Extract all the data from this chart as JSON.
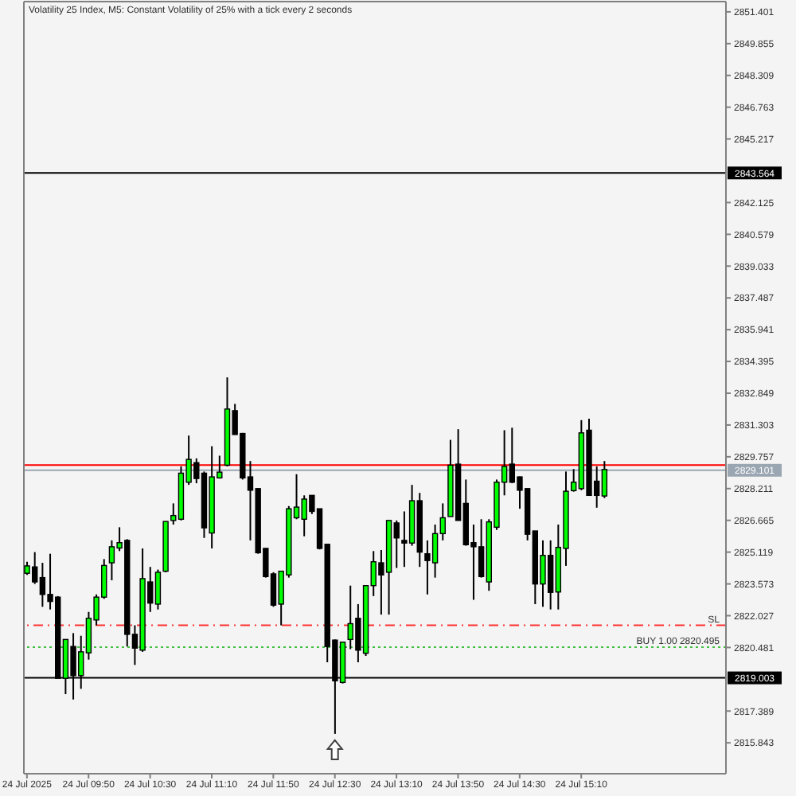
{
  "chart_data": {
    "type": "candlestick",
    "title": "Volatility 25 Index, M5: Constant Volatility of 25% with a tick every 2 seconds",
    "x": [
      "2025-07-24T09:10",
      "2025-07-24T09:15",
      "2025-07-24T09:20",
      "2025-07-24T09:25",
      "2025-07-24T09:30",
      "2025-07-24T09:35",
      "2025-07-24T09:40",
      "2025-07-24T09:45",
      "2025-07-24T09:50",
      "2025-07-24T09:55",
      "2025-07-24T10:00",
      "2025-07-24T10:05",
      "2025-07-24T10:10",
      "2025-07-24T10:15",
      "2025-07-24T10:20",
      "2025-07-24T10:25",
      "2025-07-24T10:30",
      "2025-07-24T10:35",
      "2025-07-24T10:40",
      "2025-07-24T10:45",
      "2025-07-24T10:50",
      "2025-07-24T10:55",
      "2025-07-24T11:00",
      "2025-07-24T11:05",
      "2025-07-24T11:10",
      "2025-07-24T11:15",
      "2025-07-24T11:20",
      "2025-07-24T11:25",
      "2025-07-24T11:30",
      "2025-07-24T11:35",
      "2025-07-24T11:40",
      "2025-07-24T11:45",
      "2025-07-24T11:50",
      "2025-07-24T11:55",
      "2025-07-24T12:00",
      "2025-07-24T12:05",
      "2025-07-24T12:10",
      "2025-07-24T12:15",
      "2025-07-24T12:20",
      "2025-07-24T12:25",
      "2025-07-24T12:30",
      "2025-07-24T12:35",
      "2025-07-24T12:40",
      "2025-07-24T12:45",
      "2025-07-24T12:50",
      "2025-07-24T12:55",
      "2025-07-24T13:00",
      "2025-07-24T13:05",
      "2025-07-24T13:10",
      "2025-07-24T13:15",
      "2025-07-24T13:20",
      "2025-07-24T13:25",
      "2025-07-24T13:30",
      "2025-07-24T13:35",
      "2025-07-24T13:40",
      "2025-07-24T13:45",
      "2025-07-24T13:50",
      "2025-07-24T13:55",
      "2025-07-24T14:00",
      "2025-07-24T14:05",
      "2025-07-24T14:10",
      "2025-07-24T14:15",
      "2025-07-24T14:20",
      "2025-07-24T14:25",
      "2025-07-24T14:30",
      "2025-07-24T14:35",
      "2025-07-24T14:40",
      "2025-07-24T14:45",
      "2025-07-24T14:50",
      "2025-07-24T14:55",
      "2025-07-24T15:00",
      "2025-07-24T15:05",
      "2025-07-24T15:10",
      "2025-07-24T15:15",
      "2025-07-24T15:20",
      "2025-07-24T15:25"
    ],
    "ohlc": [
      [
        2824.09,
        2824.65,
        2824.01,
        2824.45
      ],
      [
        2824.4,
        2825.12,
        2823.57,
        2823.67
      ],
      [
        2823.88,
        2824.6,
        2822.46,
        2823.06
      ],
      [
        2823.06,
        2825.04,
        2822.33,
        2822.72
      ],
      [
        2822.93,
        2822.98,
        2818.98,
        2818.98
      ],
      [
        2818.98,
        2820.87,
        2818.21,
        2820.87
      ],
      [
        2820.53,
        2821.18,
        2817.95,
        2819.11
      ],
      [
        2819.11,
        2821.05,
        2818.47,
        2820.27
      ],
      [
        2820.22,
        2822.21,
        2819.89,
        2821.9
      ],
      [
        2821.82,
        2823.06,
        2821.56,
        2822.93
      ],
      [
        2822.93,
        2824.78,
        2822.85,
        2824.47
      ],
      [
        2824.6,
        2825.69,
        2823.75,
        2825.38
      ],
      [
        2825.32,
        2826.33,
        2825.17,
        2825.58
      ],
      [
        2825.69,
        2825.75,
        2820.53,
        2821.12
      ],
      [
        2821.12,
        2821.56,
        2819.63,
        2820.45
      ],
      [
        2820.35,
        2825.3,
        2820.27,
        2823.83
      ],
      [
        2823.67,
        2824.4,
        2822.21,
        2822.64
      ],
      [
        2822.59,
        2824.27,
        2822.33,
        2824.14
      ],
      [
        2824.19,
        2826.61,
        2824.14,
        2826.61
      ],
      [
        2826.66,
        2827.49,
        2826.46,
        2826.9
      ],
      [
        2826.72,
        2829.29,
        2826.66,
        2828.96
      ],
      [
        2828.52,
        2830.79,
        2828.39,
        2829.63
      ],
      [
        2829.47,
        2829.68,
        2828.47,
        2828.7
      ],
      [
        2828.96,
        2829.04,
        2825.81,
        2826.3
      ],
      [
        2826.05,
        2830.27,
        2825.3,
        2828.78
      ],
      [
        2828.73,
        2829.81,
        2828.7,
        2829.01
      ],
      [
        2829.35,
        2833.62,
        2829.29,
        2832.08
      ],
      [
        2832.0,
        2832.33,
        2830.84,
        2830.84
      ],
      [
        2830.89,
        2830.92,
        2828.65,
        2828.73
      ],
      [
        2828.78,
        2829.55,
        2825.69,
        2828.13
      ],
      [
        2828.21,
        2828.21,
        2825.04,
        2825.09
      ],
      [
        2825.3,
        2825.3,
        2823.88,
        2823.93
      ],
      [
        2824.06,
        2824.14,
        2822.46,
        2822.54
      ],
      [
        2822.59,
        2824.19,
        2821.56,
        2824.19
      ],
      [
        2824.01,
        2827.36,
        2823.88,
        2827.23
      ],
      [
        2826.79,
        2828.91,
        2826.72,
        2827.31
      ],
      [
        2826.72,
        2827.88,
        2825.89,
        2827.7
      ],
      [
        2827.88,
        2827.88,
        2826.97,
        2827.1
      ],
      [
        2827.23,
        2827.23,
        2825.25,
        2825.3
      ],
      [
        2825.5,
        2825.5,
        2819.76,
        2820.53
      ],
      [
        2820.84,
        2820.87,
        2816.28,
        2818.86
      ],
      [
        2818.78,
        2820.74,
        2818.73,
        2820.74
      ],
      [
        2820.87,
        2823.49,
        2820.4,
        2821.64
      ],
      [
        2821.9,
        2822.59,
        2819.76,
        2820.35
      ],
      [
        2820.2,
        2823.49,
        2820.07,
        2823.49
      ],
      [
        2823.49,
        2825.17,
        2822.98,
        2824.65
      ],
      [
        2824.6,
        2825.22,
        2822.08,
        2824.01
      ],
      [
        2824.14,
        2826.66,
        2822.08,
        2826.66
      ],
      [
        2826.54,
        2826.66,
        2824.35,
        2825.81
      ],
      [
        2825.69,
        2827.1,
        2824.4,
        2825.56
      ],
      [
        2825.56,
        2828.39,
        2825.43,
        2827.62
      ],
      [
        2827.62,
        2828.0,
        2824.4,
        2825.12
      ],
      [
        2825.04,
        2825.69,
        2823.06,
        2824.71
      ],
      [
        2824.6,
        2826.46,
        2823.88,
        2826.02
      ],
      [
        2826.02,
        2827.49,
        2825.69,
        2826.79
      ],
      [
        2826.85,
        2830.58,
        2826.85,
        2829.35
      ],
      [
        2829.4,
        2831.1,
        2826.66,
        2826.66
      ],
      [
        2827.49,
        2828.65,
        2825.43,
        2825.48
      ],
      [
        2825.58,
        2826.46,
        2822.8,
        2825.38
      ],
      [
        2825.38,
        2826.72,
        2823.88,
        2823.93
      ],
      [
        2823.67,
        2826.72,
        2823.24,
        2826.59
      ],
      [
        2826.33,
        2828.65,
        2826.2,
        2828.52
      ],
      [
        2828.52,
        2831.05,
        2827.88,
        2829.29
      ],
      [
        2829.4,
        2831.17,
        2828.47,
        2828.52
      ],
      [
        2828.78,
        2828.8,
        2827.23,
        2828.13
      ],
      [
        2828.21,
        2828.21,
        2825.69,
        2825.99
      ],
      [
        2826.15,
        2826.15,
        2822.59,
        2823.57
      ],
      [
        2823.57,
        2825.69,
        2822.46,
        2824.96
      ],
      [
        2824.96,
        2825.69,
        2822.33,
        2823.16
      ],
      [
        2823.18,
        2826.46,
        2822.33,
        2825.35
      ],
      [
        2825.3,
        2829.04,
        2824.45,
        2828.08
      ],
      [
        2828.11,
        2829.16,
        2828.06,
        2828.52
      ],
      [
        2828.21,
        2831.54,
        2828.13,
        2830.92
      ],
      [
        2831.05,
        2831.61,
        2827.88,
        2827.88
      ],
      [
        2828.57,
        2829.29,
        2827.28,
        2827.88
      ],
      [
        2827.85,
        2829.55,
        2827.75,
        2829.14
      ]
    ],
    "colors": [
      "#00ff00",
      "#000000",
      "#000000",
      "#000000",
      "#000000",
      "#00ff00",
      "#000000",
      "#00ff00",
      "#00ff00",
      "#00ff00",
      "#00ff00",
      "#00ff00",
      "#00ff00",
      "#000000",
      "#000000",
      "#00ff00",
      "#000000",
      "#00ff00",
      "#00ff00",
      "#00ff00",
      "#00ff00",
      "#00ff00",
      "#000000",
      "#000000",
      "#00ff00",
      "#00ff00",
      "#00ff00",
      "#000000",
      "#000000",
      "#000000",
      "#000000",
      "#000000",
      "#000000",
      "#00ff00",
      "#00ff00",
      "#00ff00",
      "#00ff00",
      "#000000",
      "#000000",
      "#000000",
      "#000000",
      "#00ff00",
      "#00ff00",
      "#000000",
      "#00ff00",
      "#00ff00",
      "#000000",
      "#00ff00",
      "#000000",
      "#000000",
      "#00ff00",
      "#000000",
      "#000000",
      "#00ff00",
      "#00ff00",
      "#00ff00",
      "#000000",
      "#000000",
      "#000000",
      "#000000",
      "#00ff00",
      "#00ff00",
      "#00ff00",
      "#000000",
      "#000000",
      "#000000",
      "#000000",
      "#00ff00",
      "#000000",
      "#00ff00",
      "#00ff00",
      "#00ff00",
      "#00ff00",
      "#000000",
      "#000000",
      "#00ff00"
    ],
    "xlim": [
      "2025-07-24T09:08",
      "2025-07-24T16:44"
    ],
    "xticks": [
      {
        "value": "2025-07-24T09:10",
        "label": "24 Jul 2025"
      },
      {
        "value": "2025-07-24T09:50",
        "label": "24 Jul 09:50"
      },
      {
        "value": "2025-07-24T10:30",
        "label": "24 Jul 10:30"
      },
      {
        "value": "2025-07-24T11:10",
        "label": "24 Jul 11:10"
      },
      {
        "value": "2025-07-24T11:50",
        "label": "24 Jul 11:50"
      },
      {
        "value": "2025-07-24T12:30",
        "label": "24 Jul 12:30"
      },
      {
        "value": "2025-07-24T13:10",
        "label": "24 Jul 13:10"
      },
      {
        "value": "2025-07-24T13:50",
        "label": "24 Jul 13:50"
      },
      {
        "value": "2025-07-24T14:30",
        "label": "24 Jul 14:30"
      },
      {
        "value": "2025-07-24T15:10",
        "label": "24 Jul 15:10"
      }
    ],
    "ylim": [
      2814.34,
      2851.9
    ],
    "yticks": [
      2815.843,
      2817.389,
      2820.481,
      2822.027,
      2823.573,
      2825.119,
      2826.665,
      2828.211,
      2829.757,
      2831.303,
      2832.849,
      2834.395,
      2835.941,
      2837.487,
      2839.033,
      2840.579,
      2842.125,
      2845.217,
      2846.763,
      2848.309,
      2849.855,
      2851.401
    ],
    "ref_lines": [
      {
        "axis": "y",
        "value": 2843.564,
        "label": "2843.564",
        "color": "#000000"
      },
      {
        "axis": "y",
        "value": 2829.35,
        "color": "#ff0000"
      },
      {
        "axis": "y",
        "value": 2829.101,
        "label": "2829.101",
        "color": "#9aa6b2"
      },
      {
        "axis": "y",
        "value": 2821.56,
        "label": "SL",
        "color": "#ff3030",
        "line_style": "dashed"
      },
      {
        "axis": "y",
        "value": 2820.495,
        "label": "BUY 1.00 2820.495",
        "color": "#40c040",
        "line_style": "dotted"
      },
      {
        "axis": "y",
        "value": 2819.003,
        "label": "2819.003",
        "color": "#000000"
      }
    ]
  }
}
